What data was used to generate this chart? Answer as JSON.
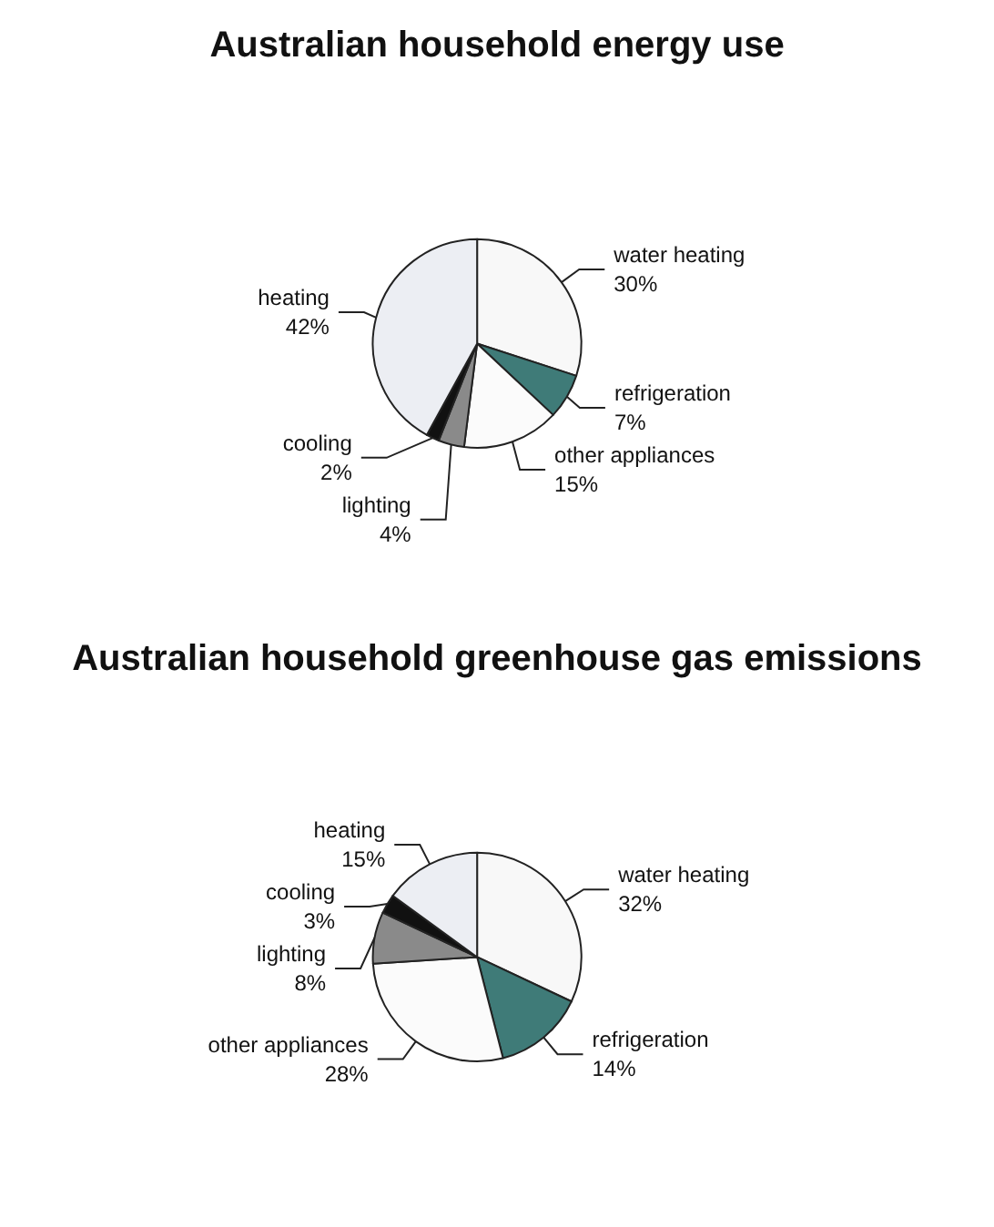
{
  "chart_data": [
    {
      "type": "pie",
      "title": "Australian household energy use",
      "categories": [
        "water heating",
        "refrigeration",
        "other appliances",
        "lighting",
        "cooling",
        "heating"
      ],
      "values": [
        30,
        7,
        15,
        4,
        2,
        42
      ],
      "value_labels": [
        "30%",
        "7%",
        "15%",
        "4%",
        "2%",
        "42%"
      ],
      "colors": [
        "#f8f8f8",
        "#3f7b78",
        "#fbfbfb",
        "#8a8a8a",
        "#111111",
        "#eceef3"
      ]
    },
    {
      "type": "pie",
      "title": "Australian household greenhouse gas emissions",
      "categories": [
        "water heating",
        "refrigeration",
        "other appliances",
        "lighting",
        "cooling",
        "heating"
      ],
      "values": [
        32,
        14,
        28,
        8,
        3,
        15
      ],
      "value_labels": [
        "32%",
        "14%",
        "28%",
        "8%",
        "3%",
        "15%"
      ],
      "colors": [
        "#f8f8f8",
        "#3f7b78",
        "#fbfbfb",
        "#8a8a8a",
        "#111111",
        "#eceef3"
      ]
    }
  ]
}
